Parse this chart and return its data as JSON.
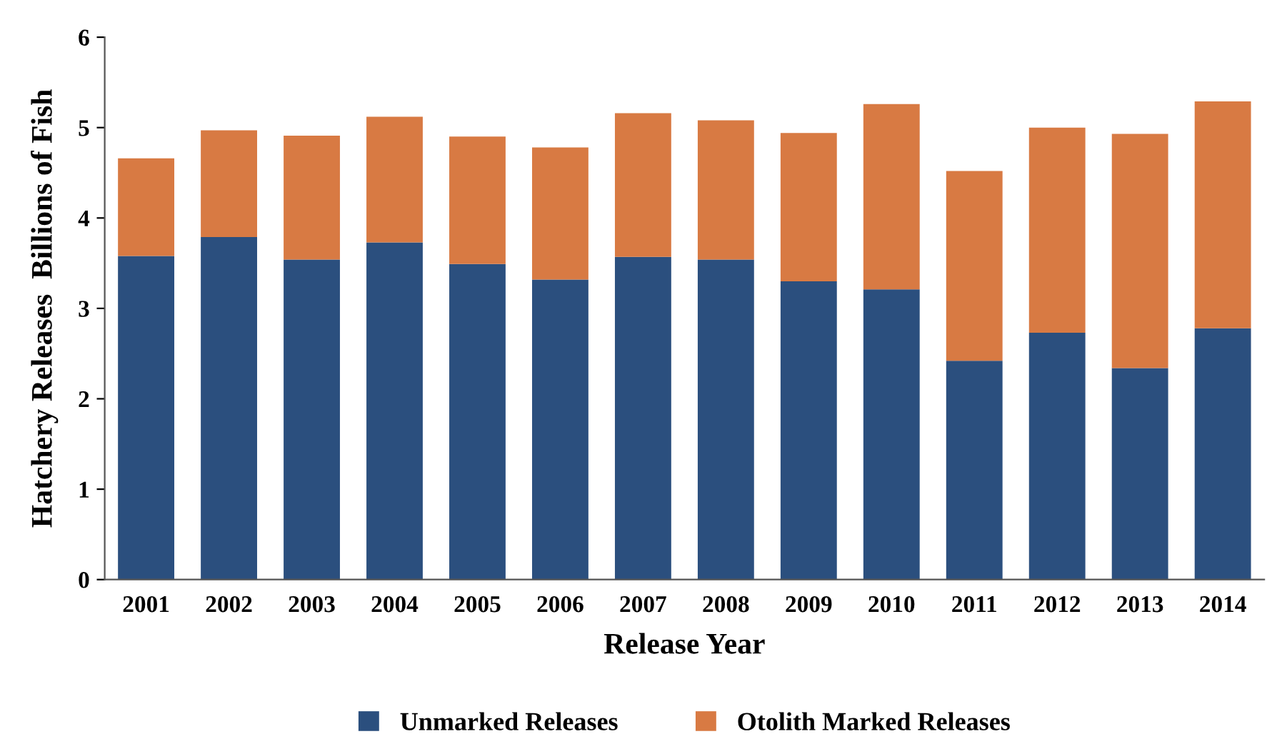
{
  "chart_data": {
    "type": "bar",
    "stacked": true,
    "xlabel": "Release Year",
    "ylabel": "Hatchery Releases  Billions of Fish",
    "categories": [
      "2001",
      "2002",
      "2003",
      "2004",
      "2005",
      "2006",
      "2007",
      "2008",
      "2009",
      "2010",
      "2011",
      "2012",
      "2013",
      "2014"
    ],
    "series": [
      {
        "name": "Unmarked Releases",
        "color": "#2b4f7e",
        "values": [
          3.58,
          3.79,
          3.54,
          3.73,
          3.49,
          3.32,
          3.57,
          3.54,
          3.3,
          3.21,
          2.42,
          2.73,
          2.34,
          2.78
        ]
      },
      {
        "name": "Otolith Marked Releases",
        "color": "#d87a43",
        "values": [
          1.08,
          1.18,
          1.37,
          1.39,
          1.41,
          1.46,
          1.59,
          1.54,
          1.64,
          2.05,
          2.1,
          2.27,
          2.59,
          2.51
        ]
      }
    ],
    "ylim": [
      0,
      6
    ],
    "yticks": [
      0,
      1,
      2,
      3,
      4,
      5,
      6
    ],
    "grid": false,
    "legend": "bottom"
  }
}
